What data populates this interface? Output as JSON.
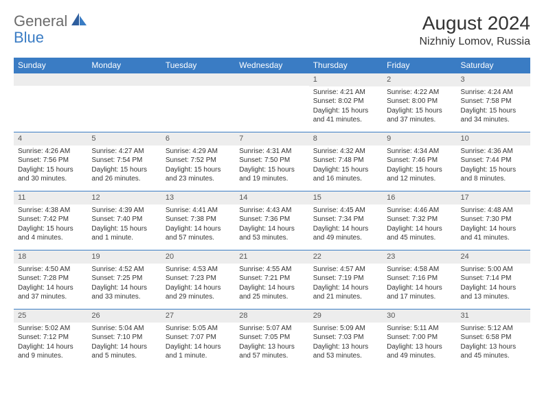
{
  "logo": {
    "text1": "General",
    "text2": "Blue"
  },
  "title": "August 2024",
  "location": "Nizhniy Lomov, Russia",
  "colors": {
    "accent": "#3a7cc4",
    "header_bg": "#3a7cc4",
    "row_stripe": "#ededed",
    "text": "#333333"
  },
  "weekdays": [
    "Sunday",
    "Monday",
    "Tuesday",
    "Wednesday",
    "Thursday",
    "Friday",
    "Saturday"
  ],
  "weeks": [
    [
      null,
      null,
      null,
      null,
      {
        "n": "1",
        "sr": "Sunrise: 4:21 AM",
        "ss": "Sunset: 8:02 PM",
        "dl1": "Daylight: 15 hours",
        "dl2": "and 41 minutes."
      },
      {
        "n": "2",
        "sr": "Sunrise: 4:22 AM",
        "ss": "Sunset: 8:00 PM",
        "dl1": "Daylight: 15 hours",
        "dl2": "and 37 minutes."
      },
      {
        "n": "3",
        "sr": "Sunrise: 4:24 AM",
        "ss": "Sunset: 7:58 PM",
        "dl1": "Daylight: 15 hours",
        "dl2": "and 34 minutes."
      }
    ],
    [
      {
        "n": "4",
        "sr": "Sunrise: 4:26 AM",
        "ss": "Sunset: 7:56 PM",
        "dl1": "Daylight: 15 hours",
        "dl2": "and 30 minutes."
      },
      {
        "n": "5",
        "sr": "Sunrise: 4:27 AM",
        "ss": "Sunset: 7:54 PM",
        "dl1": "Daylight: 15 hours",
        "dl2": "and 26 minutes."
      },
      {
        "n": "6",
        "sr": "Sunrise: 4:29 AM",
        "ss": "Sunset: 7:52 PM",
        "dl1": "Daylight: 15 hours",
        "dl2": "and 23 minutes."
      },
      {
        "n": "7",
        "sr": "Sunrise: 4:31 AM",
        "ss": "Sunset: 7:50 PM",
        "dl1": "Daylight: 15 hours",
        "dl2": "and 19 minutes."
      },
      {
        "n": "8",
        "sr": "Sunrise: 4:32 AM",
        "ss": "Sunset: 7:48 PM",
        "dl1": "Daylight: 15 hours",
        "dl2": "and 16 minutes."
      },
      {
        "n": "9",
        "sr": "Sunrise: 4:34 AM",
        "ss": "Sunset: 7:46 PM",
        "dl1": "Daylight: 15 hours",
        "dl2": "and 12 minutes."
      },
      {
        "n": "10",
        "sr": "Sunrise: 4:36 AM",
        "ss": "Sunset: 7:44 PM",
        "dl1": "Daylight: 15 hours",
        "dl2": "and 8 minutes."
      }
    ],
    [
      {
        "n": "11",
        "sr": "Sunrise: 4:38 AM",
        "ss": "Sunset: 7:42 PM",
        "dl1": "Daylight: 15 hours",
        "dl2": "and 4 minutes."
      },
      {
        "n": "12",
        "sr": "Sunrise: 4:39 AM",
        "ss": "Sunset: 7:40 PM",
        "dl1": "Daylight: 15 hours",
        "dl2": "and 1 minute."
      },
      {
        "n": "13",
        "sr": "Sunrise: 4:41 AM",
        "ss": "Sunset: 7:38 PM",
        "dl1": "Daylight: 14 hours",
        "dl2": "and 57 minutes."
      },
      {
        "n": "14",
        "sr": "Sunrise: 4:43 AM",
        "ss": "Sunset: 7:36 PM",
        "dl1": "Daylight: 14 hours",
        "dl2": "and 53 minutes."
      },
      {
        "n": "15",
        "sr": "Sunrise: 4:45 AM",
        "ss": "Sunset: 7:34 PM",
        "dl1": "Daylight: 14 hours",
        "dl2": "and 49 minutes."
      },
      {
        "n": "16",
        "sr": "Sunrise: 4:46 AM",
        "ss": "Sunset: 7:32 PM",
        "dl1": "Daylight: 14 hours",
        "dl2": "and 45 minutes."
      },
      {
        "n": "17",
        "sr": "Sunrise: 4:48 AM",
        "ss": "Sunset: 7:30 PM",
        "dl1": "Daylight: 14 hours",
        "dl2": "and 41 minutes."
      }
    ],
    [
      {
        "n": "18",
        "sr": "Sunrise: 4:50 AM",
        "ss": "Sunset: 7:28 PM",
        "dl1": "Daylight: 14 hours",
        "dl2": "and 37 minutes."
      },
      {
        "n": "19",
        "sr": "Sunrise: 4:52 AM",
        "ss": "Sunset: 7:25 PM",
        "dl1": "Daylight: 14 hours",
        "dl2": "and 33 minutes."
      },
      {
        "n": "20",
        "sr": "Sunrise: 4:53 AM",
        "ss": "Sunset: 7:23 PM",
        "dl1": "Daylight: 14 hours",
        "dl2": "and 29 minutes."
      },
      {
        "n": "21",
        "sr": "Sunrise: 4:55 AM",
        "ss": "Sunset: 7:21 PM",
        "dl1": "Daylight: 14 hours",
        "dl2": "and 25 minutes."
      },
      {
        "n": "22",
        "sr": "Sunrise: 4:57 AM",
        "ss": "Sunset: 7:19 PM",
        "dl1": "Daylight: 14 hours",
        "dl2": "and 21 minutes."
      },
      {
        "n": "23",
        "sr": "Sunrise: 4:58 AM",
        "ss": "Sunset: 7:16 PM",
        "dl1": "Daylight: 14 hours",
        "dl2": "and 17 minutes."
      },
      {
        "n": "24",
        "sr": "Sunrise: 5:00 AM",
        "ss": "Sunset: 7:14 PM",
        "dl1": "Daylight: 14 hours",
        "dl2": "and 13 minutes."
      }
    ],
    [
      {
        "n": "25",
        "sr": "Sunrise: 5:02 AM",
        "ss": "Sunset: 7:12 PM",
        "dl1": "Daylight: 14 hours",
        "dl2": "and 9 minutes."
      },
      {
        "n": "26",
        "sr": "Sunrise: 5:04 AM",
        "ss": "Sunset: 7:10 PM",
        "dl1": "Daylight: 14 hours",
        "dl2": "and 5 minutes."
      },
      {
        "n": "27",
        "sr": "Sunrise: 5:05 AM",
        "ss": "Sunset: 7:07 PM",
        "dl1": "Daylight: 14 hours",
        "dl2": "and 1 minute."
      },
      {
        "n": "28",
        "sr": "Sunrise: 5:07 AM",
        "ss": "Sunset: 7:05 PM",
        "dl1": "Daylight: 13 hours",
        "dl2": "and 57 minutes."
      },
      {
        "n": "29",
        "sr": "Sunrise: 5:09 AM",
        "ss": "Sunset: 7:03 PM",
        "dl1": "Daylight: 13 hours",
        "dl2": "and 53 minutes."
      },
      {
        "n": "30",
        "sr": "Sunrise: 5:11 AM",
        "ss": "Sunset: 7:00 PM",
        "dl1": "Daylight: 13 hours",
        "dl2": "and 49 minutes."
      },
      {
        "n": "31",
        "sr": "Sunrise: 5:12 AM",
        "ss": "Sunset: 6:58 PM",
        "dl1": "Daylight: 13 hours",
        "dl2": "and 45 minutes."
      }
    ]
  ]
}
